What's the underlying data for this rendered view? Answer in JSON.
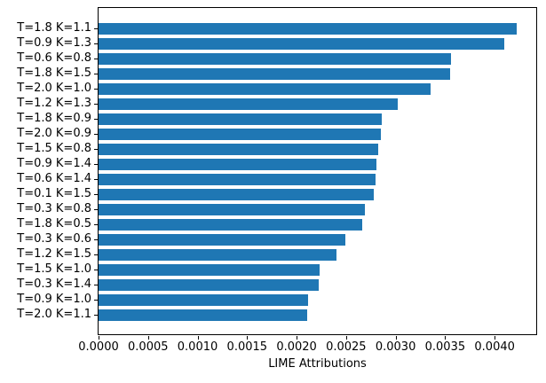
{
  "chart_data": {
    "type": "bar",
    "orientation": "horizontal",
    "title": "",
    "xlabel": "LIME Attributions",
    "ylabel": "",
    "categories": [
      "T=1.8 K=1.1",
      "T=0.9 K=1.3",
      "T=0.6 K=0.8",
      "T=1.8 K=1.5",
      "T=2.0 K=1.0",
      "T=1.2 K=1.3",
      "T=1.8 K=0.9",
      "T=2.0 K=0.9",
      "T=1.5 K=0.8",
      "T=0.9 K=1.4",
      "T=0.6 K=1.4",
      "T=0.1 K=1.5",
      "T=0.3 K=0.8",
      "T=1.8 K=0.5",
      "T=0.3 K=0.6",
      "T=1.2 K=1.5",
      "T=1.5 K=1.0",
      "T=0.3 K=1.4",
      "T=0.9 K=1.0",
      "T=2.0 K=1.1"
    ],
    "values": [
      0.00422,
      0.0041,
      0.00356,
      0.00355,
      0.00335,
      0.00302,
      0.00286,
      0.00285,
      0.00282,
      0.00281,
      0.0028,
      0.00278,
      0.00269,
      0.00266,
      0.00249,
      0.0024,
      0.00223,
      0.00222,
      0.00212,
      0.00211
    ],
    "xlim": [
      0,
      0.00442
    ],
    "xticks": [
      0.0,
      0.0005,
      0.001,
      0.0015,
      0.002,
      0.0025,
      0.003,
      0.0035,
      0.004
    ],
    "xtick_labels": [
      "0.0000",
      "0.0005",
      "0.0010",
      "0.0015",
      "0.0020",
      "0.0025",
      "0.0030",
      "0.0035",
      "0.0040"
    ],
    "bar_color": "#1f77b4",
    "grid": false,
    "legend_position": "none"
  }
}
